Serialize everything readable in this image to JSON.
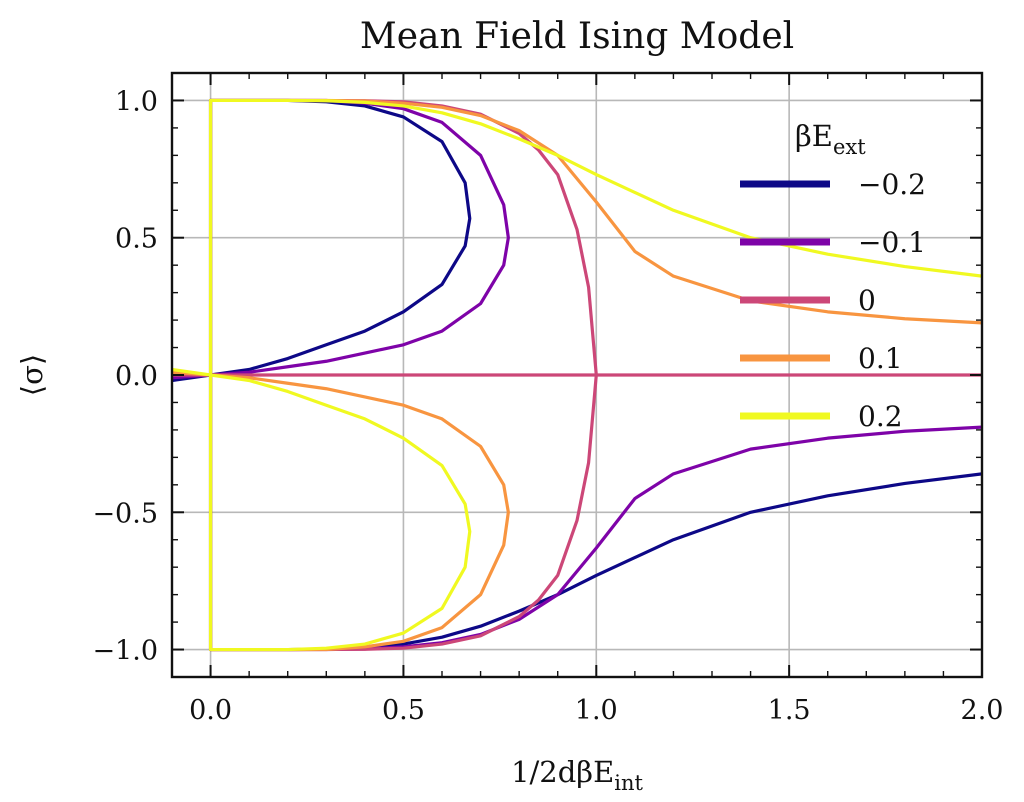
{
  "chart_data": {
    "type": "line",
    "title": "Mean Field Ising Model",
    "xlabel": "1/2dβE",
    "xlabel_sub": "int",
    "ylabel": "⟨σ⟩",
    "xlim": [
      -0.1,
      2.0
    ],
    "ylim": [
      -1.1,
      1.1
    ],
    "xticks": [
      0.0,
      0.5,
      1.0,
      1.5,
      2.0
    ],
    "xtick_labels": [
      "0.0",
      "0.5",
      "1.0",
      "1.5",
      "2.0"
    ],
    "yticks": [
      -1.0,
      -0.5,
      0.0,
      0.5,
      1.0
    ],
    "ytick_labels": [
      "−1.0",
      "−0.5",
      "0.0",
      "0.5",
      "1.0"
    ],
    "grid": true,
    "legend": {
      "placement": "right",
      "title": "βE",
      "title_sub": "ext"
    },
    "series": [
      {
        "name": "−0.2",
        "h": -0.2,
        "color": "#0d0887",
        "x": [
          -0.1,
          -0.05,
          0.0,
          0.1,
          0.2,
          0.3,
          0.4,
          0.5,
          0.6,
          0.66,
          0.672,
          0.66,
          0.6,
          0.5,
          0.4,
          0.3,
          0.2,
          0.1,
          0.0,
          0.0,
          0.1,
          0.2,
          0.3,
          0.4,
          0.5,
          0.6,
          0.7,
          0.8,
          0.9,
          1.0,
          1.2,
          1.4,
          1.6,
          1.8,
          2.0
        ],
        "y": [
          -0.02,
          -0.01,
          0.0,
          0.02,
          0.06,
          0.11,
          0.16,
          0.23,
          0.33,
          0.47,
          0.57,
          0.7,
          0.85,
          0.94,
          0.98,
          0.995,
          1.0,
          1.0,
          1.0,
          -1.0,
          -1.0,
          -1.0,
          -0.999,
          -0.993,
          -0.98,
          -0.955,
          -0.915,
          -0.86,
          -0.8,
          -0.73,
          -0.6,
          -0.5,
          -0.44,
          -0.395,
          -0.36
        ]
      },
      {
        "name": "−0.1",
        "h": -0.1,
        "color": "#7e03a8",
        "x": [
          -0.1,
          -0.05,
          0.0,
          0.1,
          0.2,
          0.3,
          0.4,
          0.5,
          0.6,
          0.7,
          0.76,
          0.772,
          0.76,
          0.7,
          0.6,
          0.5,
          0.4,
          0.3,
          0.2,
          0.1,
          0.0,
          0.0,
          0.1,
          0.2,
          0.3,
          0.4,
          0.5,
          0.6,
          0.7,
          0.8,
          0.9,
          1.0,
          1.1,
          1.2,
          1.4,
          1.6,
          1.8,
          2.0
        ],
        "y": [
          -0.01,
          -0.005,
          0.0,
          0.01,
          0.03,
          0.05,
          0.08,
          0.11,
          0.16,
          0.26,
          0.4,
          0.5,
          0.62,
          0.8,
          0.92,
          0.97,
          0.99,
          1.0,
          1.0,
          1.0,
          1.0,
          -1.0,
          -1.0,
          -1.0,
          -1.0,
          -0.998,
          -0.99,
          -0.975,
          -0.945,
          -0.89,
          -0.8,
          -0.63,
          -0.45,
          -0.36,
          -0.27,
          -0.23,
          -0.205,
          -0.19
        ]
      },
      {
        "name": "0",
        "h": 0.0,
        "color": "#cc4778",
        "x": [
          -0.1,
          2.0,
          null,
          0.0,
          0.2,
          0.4,
          0.5,
          0.6,
          0.7,
          0.8,
          0.85,
          0.9,
          0.95,
          0.98,
          1.0,
          0.98,
          0.95,
          0.9,
          0.85,
          0.8,
          0.7,
          0.6,
          0.5,
          0.4,
          0.2,
          0.0
        ],
        "y": [
          0.0,
          0.0,
          null,
          1.0,
          1.0,
          0.999,
          0.995,
          0.98,
          0.95,
          0.88,
          0.82,
          0.73,
          0.53,
          0.32,
          0.0,
          -0.32,
          -0.53,
          -0.73,
          -0.82,
          -0.88,
          -0.95,
          -0.98,
          -0.995,
          -0.999,
          -1.0,
          -1.0
        ]
      },
      {
        "name": "0.1",
        "h": 0.1,
        "color": "#f89540",
        "x": [
          -0.1,
          -0.05,
          0.0,
          0.1,
          0.2,
          0.3,
          0.4,
          0.5,
          0.6,
          0.7,
          0.76,
          0.772,
          0.76,
          0.7,
          0.6,
          0.5,
          0.4,
          0.3,
          0.2,
          0.1,
          0.0,
          0.0,
          0.1,
          0.2,
          0.3,
          0.4,
          0.5,
          0.6,
          0.7,
          0.8,
          0.9,
          1.0,
          1.1,
          1.2,
          1.4,
          1.6,
          1.8,
          2.0
        ],
        "y": [
          0.01,
          0.005,
          0.0,
          -0.01,
          -0.03,
          -0.05,
          -0.08,
          -0.11,
          -0.16,
          -0.26,
          -0.4,
          -0.5,
          -0.62,
          -0.8,
          -0.92,
          -0.97,
          -0.99,
          -1.0,
          -1.0,
          -1.0,
          -1.0,
          1.0,
          1.0,
          1.0,
          1.0,
          0.998,
          0.99,
          0.975,
          0.945,
          0.89,
          0.8,
          0.63,
          0.45,
          0.36,
          0.27,
          0.23,
          0.205,
          0.19
        ]
      },
      {
        "name": "0.2",
        "h": 0.2,
        "color": "#f0f921",
        "x": [
          -0.1,
          -0.05,
          0.0,
          0.1,
          0.2,
          0.3,
          0.4,
          0.5,
          0.6,
          0.66,
          0.672,
          0.66,
          0.6,
          0.5,
          0.4,
          0.3,
          0.2,
          0.1,
          0.0,
          0.0,
          0.1,
          0.2,
          0.3,
          0.4,
          0.5,
          0.6,
          0.7,
          0.8,
          0.9,
          1.0,
          1.2,
          1.4,
          1.6,
          1.8,
          2.0
        ],
        "y": [
          0.02,
          0.01,
          0.0,
          -0.02,
          -0.06,
          -0.11,
          -0.16,
          -0.23,
          -0.33,
          -0.47,
          -0.57,
          -0.7,
          -0.85,
          -0.94,
          -0.98,
          -0.995,
          -1.0,
          -1.0,
          -1.0,
          1.0,
          1.0,
          1.0,
          0.999,
          0.993,
          0.98,
          0.955,
          0.915,
          0.86,
          0.8,
          0.73,
          0.6,
          0.5,
          0.44,
          0.395,
          0.36
        ]
      }
    ]
  }
}
